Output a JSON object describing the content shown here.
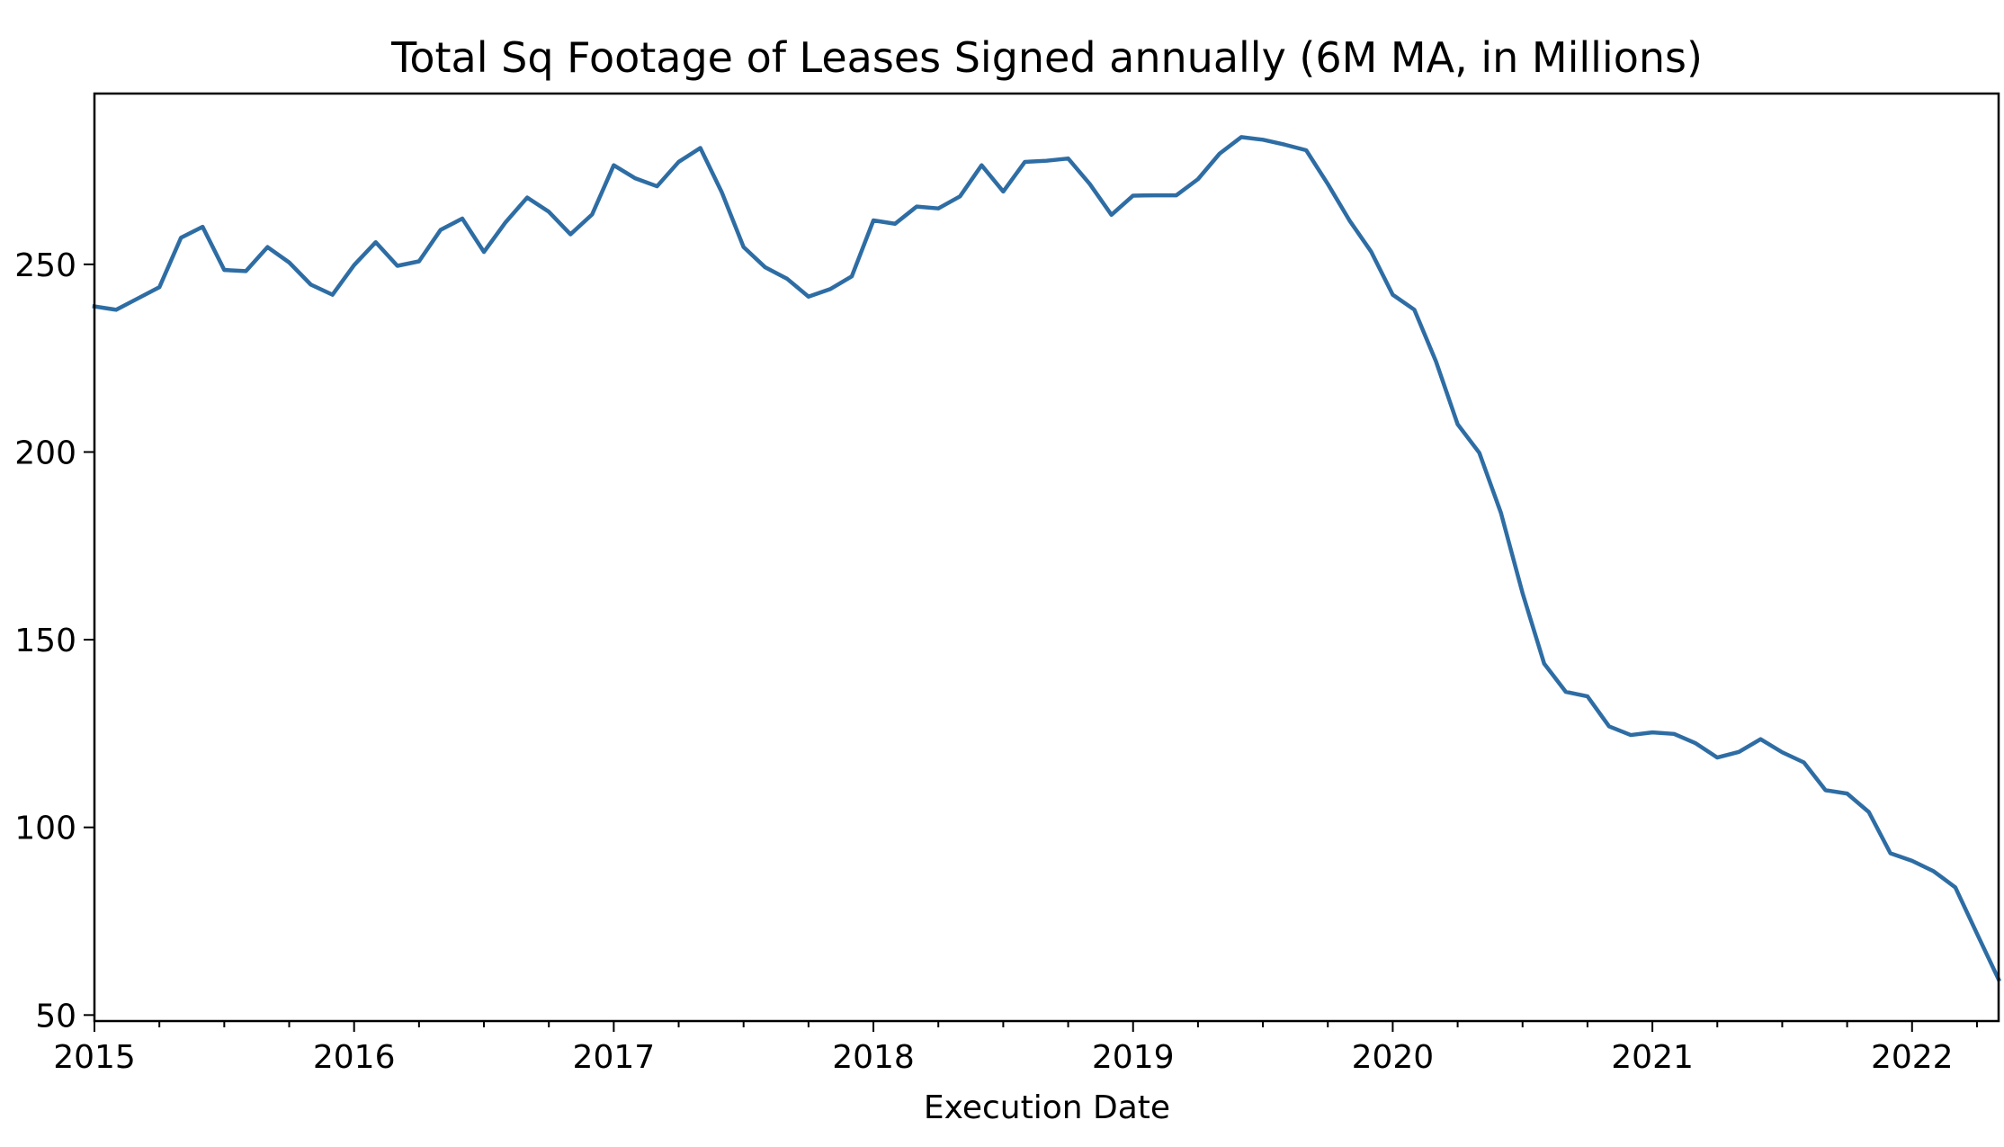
{
  "chart_data": {
    "type": "line",
    "title": "Total Sq Footage of Leases Signed annually (6M MA, in Millions)",
    "xlabel": "Execution Date",
    "ylabel": "",
    "xlim": [
      "2015-01",
      "2022-05"
    ],
    "ylim": [
      48.4,
      295.5
    ],
    "x_ticks": [
      {
        "label": "2015",
        "value": "2015-01"
      },
      {
        "label": "2016",
        "value": "2016-01"
      },
      {
        "label": "2017",
        "value": "2017-01"
      },
      {
        "label": "2018",
        "value": "2018-01"
      },
      {
        "label": "2019",
        "value": "2019-01"
      },
      {
        "label": "2020",
        "value": "2020-01"
      },
      {
        "label": "2021",
        "value": "2021-01"
      },
      {
        "label": "2022",
        "value": "2022-01"
      }
    ],
    "y_ticks": [
      {
        "label": "50",
        "value": 50
      },
      {
        "label": "100",
        "value": 100
      },
      {
        "label": "150",
        "value": 150
      },
      {
        "label": "200",
        "value": 200
      },
      {
        "label": "250",
        "value": 250
      }
    ],
    "grid": false,
    "legend": "none",
    "series": [
      {
        "color": "#2e6da4",
        "x": [
          "2015-01",
          "2015-02",
          "2015-03",
          "2015-04",
          "2015-05",
          "2015-06",
          "2015-07",
          "2015-08",
          "2015-09",
          "2015-10",
          "2015-11",
          "2015-12",
          "2016-01",
          "2016-02",
          "2016-03",
          "2016-04",
          "2016-05",
          "2016-06",
          "2016-07",
          "2016-08",
          "2016-09",
          "2016-10",
          "2016-11",
          "2016-12",
          "2017-01",
          "2017-02",
          "2017-03",
          "2017-04",
          "2017-05",
          "2017-06",
          "2017-07",
          "2017-08",
          "2017-09",
          "2017-10",
          "2017-11",
          "2017-12",
          "2018-01",
          "2018-02",
          "2018-03",
          "2018-04",
          "2018-05",
          "2018-06",
          "2018-07",
          "2018-08",
          "2018-09",
          "2018-10",
          "2018-11",
          "2018-12",
          "2019-01",
          "2019-02",
          "2019-03",
          "2019-04",
          "2019-05",
          "2019-06",
          "2019-07",
          "2019-08",
          "2019-09",
          "2019-10",
          "2019-11",
          "2019-12",
          "2020-01",
          "2020-02",
          "2020-03",
          "2020-04",
          "2020-05",
          "2020-06",
          "2020-07",
          "2020-08",
          "2020-09",
          "2020-10",
          "2020-11",
          "2020-12",
          "2021-01",
          "2021-02",
          "2021-03",
          "2021-04",
          "2021-05",
          "2021-06",
          "2021-07",
          "2021-08",
          "2021-09",
          "2021-10",
          "2021-11",
          "2021-12",
          "2022-01",
          "2022-02",
          "2022-03",
          "2022-04",
          "2022-05"
        ],
        "values": [
          238.8,
          237.9,
          240.9,
          243.9,
          257.1,
          260.0,
          248.5,
          248.2,
          254.6,
          250.5,
          244.6,
          241.9,
          249.8,
          255.9,
          249.6,
          250.8,
          259.2,
          262.2,
          253.3,
          261.2,
          267.8,
          264.0,
          258.0,
          263.3,
          276.4,
          272.9,
          270.8,
          277.3,
          281.0,
          269.1,
          254.6,
          249.2,
          246.2,
          241.4,
          243.4,
          246.8,
          261.7,
          260.8,
          265.4,
          264.9,
          268.1,
          276.4,
          269.4,
          277.3,
          277.6,
          278.2,
          271.4,
          263.2,
          268.3,
          268.4,
          268.4,
          272.7,
          279.5,
          283.9,
          283.2,
          281.9,
          280.4,
          271.4,
          261.7,
          253.4,
          241.9,
          237.9,
          224.1,
          207.4,
          199.8,
          183.8,
          162.4,
          143.6,
          136.1,
          134.9,
          126.9,
          124.6,
          125.3,
          124.9,
          122.4,
          118.6,
          120.1,
          123.5,
          120.0,
          117.3,
          109.9,
          109.0,
          104.1,
          93.1,
          91.1,
          88.3,
          84.0,
          71.7,
          59.5
        ]
      }
    ]
  }
}
